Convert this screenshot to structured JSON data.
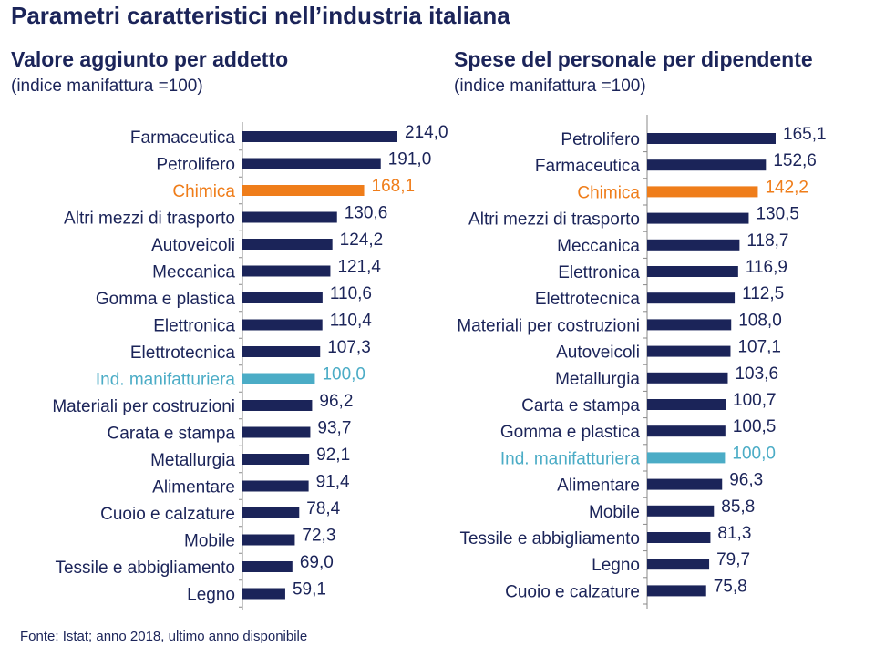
{
  "title": "Parametri caratteristici nell’industria italiana",
  "footnote": "Fonte: Istat; anno 2018, ultimo anno disponibile",
  "colors": {
    "default": "#1b2459",
    "highlight": "#ef7d1a",
    "reference": "#4bacc6",
    "axis": "#888888",
    "text": "#1b2459"
  },
  "chart_data": [
    {
      "type": "bar",
      "orientation": "horizontal",
      "title": "Valore aggiunto per addetto",
      "subtitle": "(indice manifattura =100)",
      "categories": [
        "Farmaceutica",
        "Petrolifero",
        "Chimica",
        "Altri mezzi di trasporto",
        "Autoveicoli",
        "Meccanica",
        "Gomma e plastica",
        "Elettronica",
        "Elettrotecnica",
        "Ind. manifatturiera",
        "Materiali per costruzioni",
        "Carata e stampa",
        "Metallurgia",
        "Alimentare",
        "Cuoio e calzature",
        "Mobile",
        "Tessile e abbigliamento",
        "Legno"
      ],
      "values": [
        214.0,
        191.0,
        168.1,
        130.6,
        124.2,
        121.4,
        110.6,
        110.4,
        107.3,
        100.0,
        96.2,
        93.7,
        92.1,
        91.4,
        78.4,
        72.3,
        69.0,
        59.1
      ],
      "value_labels": [
        "214,0",
        "191,0",
        "168,1",
        "130,6",
        "124,2",
        "121,4",
        "110,6",
        "110,4",
        "107,3",
        "100,0",
        "96,2",
        "93,7",
        "92,1",
        "91,4",
        "78,4",
        "72,3",
        "69,0",
        "59,1"
      ],
      "highlight": [
        "",
        "",
        "highlight",
        "",
        "",
        "",
        "",
        "",
        "",
        "reference",
        "",
        "",
        "",
        "",
        "",
        "",
        "",
        ""
      ],
      "xlim": [
        0,
        214
      ]
    },
    {
      "type": "bar",
      "orientation": "horizontal",
      "title": "Spese del personale per dipendente",
      "subtitle": "(indice manifattura =100)",
      "categories": [
        "Petrolifero",
        "Farmaceutica",
        "Chimica",
        "Altri mezzi di trasporto",
        "Meccanica",
        "Elettronica",
        "Elettrotecnica",
        "Materiali per costruzioni",
        "Autoveicoli",
        "Metallurgia",
        "Carta e stampa",
        "Gomma e plastica",
        "Ind. manifatturiera",
        "Alimentare",
        "Mobile",
        "Tessile e abbigliamento",
        "Legno",
        "Cuoio e calzature"
      ],
      "values": [
        165.1,
        152.6,
        142.2,
        130.5,
        118.7,
        116.9,
        112.5,
        108.0,
        107.1,
        103.6,
        100.7,
        100.5,
        100.0,
        96.3,
        85.8,
        81.3,
        79.7,
        75.8
      ],
      "value_labels": [
        "165,1",
        "152,6",
        "142,2",
        "130,5",
        "118,7",
        "116,9",
        "112,5",
        "108,0",
        "107,1",
        "103,6",
        "100,7",
        "100,5",
        "100,0",
        "96,3",
        "85,8",
        "81,3",
        "79,7",
        "75,8"
      ],
      "highlight": [
        "",
        "",
        "highlight",
        "",
        "",
        "",
        "",
        "",
        "",
        "",
        "",
        "",
        "reference",
        "",
        "",
        "",
        "",
        ""
      ],
      "xlim": [
        0,
        165.1
      ]
    }
  ]
}
